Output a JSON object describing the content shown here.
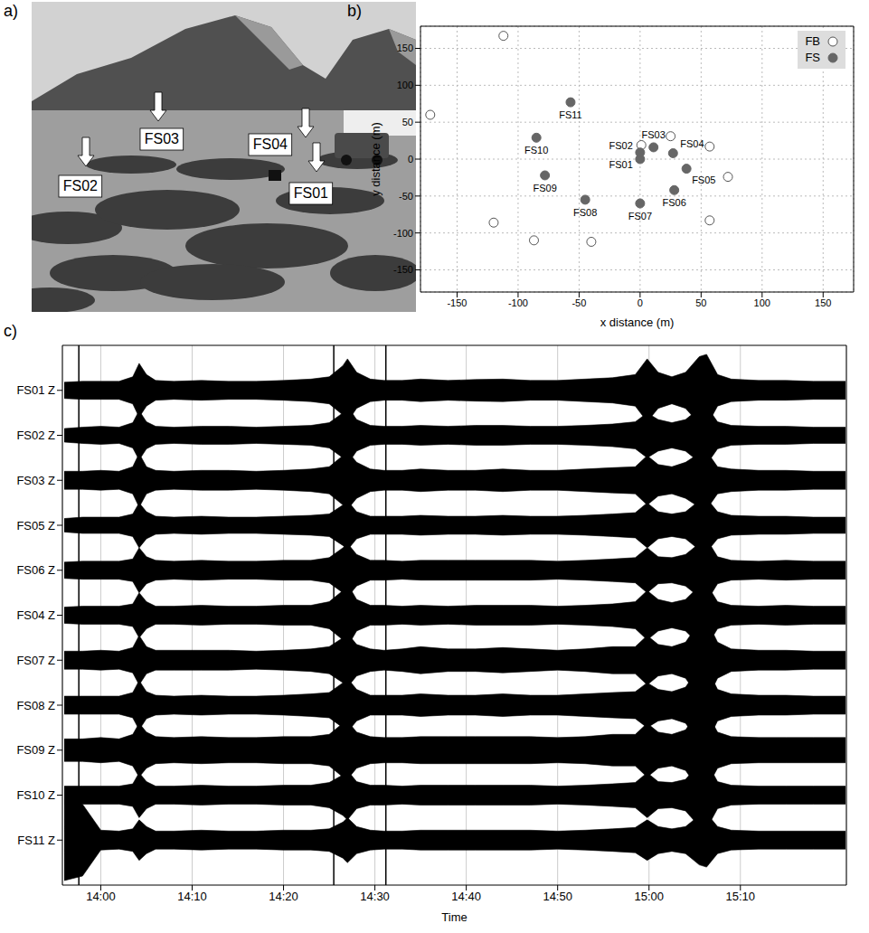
{
  "photo": {
    "panel_label": "a)",
    "labels": [
      "FS02",
      "FS03",
      "FS04",
      "FS01"
    ]
  },
  "chart_data": [
    {
      "type": "scatter",
      "panel_label": "b)",
      "xlabel": "x distance (m)",
      "ylabel": "y distance (m)",
      "xlim": [
        -180,
        175
      ],
      "ylim": [
        -180,
        180
      ],
      "xticks": [
        -150,
        -100,
        -50,
        0,
        50,
        100,
        150
      ],
      "yticks": [
        -150,
        -100,
        -50,
        0,
        50,
        100,
        150
      ],
      "grid": true,
      "legend": "upper right",
      "series": [
        {
          "name": "FB",
          "marker": "open_circle",
          "color": "#555555",
          "x": [
            -112,
            -172,
            -120,
            -87,
            -40,
            57,
            72,
            57,
            25,
            1
          ],
          "y": [
            167,
            60,
            -86,
            -110,
            -112,
            -83,
            -24,
            17,
            31,
            19
          ]
        },
        {
          "name": "FS",
          "marker": "circle",
          "color": "#666666",
          "x": [
            0,
            0,
            11,
            27,
            38,
            28,
            0,
            -45,
            -78,
            -85,
            -57
          ],
          "y": [
            0,
            9,
            16,
            8,
            -13,
            -42,
            -60,
            -55,
            -22,
            29,
            77
          ],
          "labels": [
            "FS01",
            "FS02",
            "FS03",
            "FS04",
            "FS05",
            "FS06",
            "FS07",
            "FS08",
            "FS09",
            "FS10",
            "FS11"
          ]
        }
      ]
    },
    {
      "type": "area",
      "panel_label": "c)",
      "xlabel": "Time",
      "grid": true,
      "xlim": [
        835.8,
        921.6
      ],
      "xticks": [
        {
          "value": 840,
          "label": "14:00"
        },
        {
          "value": 850,
          "label": "14:10"
        },
        {
          "value": 860,
          "label": "14:20"
        },
        {
          "value": 870,
          "label": "14:30"
        },
        {
          "value": 880,
          "label": "14:40"
        },
        {
          "value": 890,
          "label": "14:50"
        },
        {
          "value": 900,
          "label": "15:00"
        },
        {
          "value": 910,
          "label": "15:10"
        }
      ],
      "time_marks": [
        837.6,
        865.5,
        871.2
      ],
      "x": [
        836,
        838,
        840,
        842,
        843.5,
        844.2,
        845,
        846,
        848,
        851,
        854,
        857,
        860,
        863,
        865,
        866.5,
        867,
        868,
        869.5,
        871,
        873,
        875,
        878,
        881,
        884,
        887,
        890,
        893,
        896,
        898.5,
        899.8,
        901,
        902.5,
        904,
        905.5,
        906.3,
        907.5,
        909,
        912,
        915,
        918,
        921.5
      ],
      "series": [
        {
          "name": "FS01 Z",
          "color": "#000000",
          "values": [
            0.18,
            0.2,
            0.2,
            0.2,
            0.3,
            0.6,
            0.35,
            0.22,
            0.2,
            0.22,
            0.2,
            0.2,
            0.22,
            0.25,
            0.3,
            0.55,
            0.7,
            0.4,
            0.25,
            0.22,
            0.22,
            0.25,
            0.22,
            0.24,
            0.25,
            0.22,
            0.22,
            0.25,
            0.28,
            0.35,
            0.7,
            0.4,
            0.3,
            0.4,
            0.75,
            0.8,
            0.35,
            0.25,
            0.22,
            0.22,
            0.2,
            0.2
          ]
        },
        {
          "name": "FS02 Z",
          "color": "#000000",
          "values": [
            0.15,
            0.18,
            0.2,
            0.18,
            0.28,
            0.55,
            0.3,
            0.2,
            0.18,
            0.2,
            0.2,
            0.18,
            0.2,
            0.22,
            0.28,
            0.5,
            0.65,
            0.35,
            0.22,
            0.2,
            0.2,
            0.22,
            0.2,
            0.22,
            0.22,
            0.2,
            0.2,
            0.22,
            0.25,
            0.3,
            0.5,
            0.35,
            0.28,
            0.35,
            0.6,
            0.65,
            0.3,
            0.22,
            0.2,
            0.2,
            0.18,
            0.18
          ]
        },
        {
          "name": "FS03 Z",
          "color": "#000000",
          "values": [
            0.2,
            0.2,
            0.22,
            0.2,
            0.3,
            0.6,
            0.3,
            0.22,
            0.2,
            0.22,
            0.22,
            0.2,
            0.22,
            0.25,
            0.3,
            0.55,
            0.65,
            0.4,
            0.25,
            0.22,
            0.22,
            0.25,
            0.22,
            0.22,
            0.25,
            0.22,
            0.22,
            0.25,
            0.28,
            0.3,
            0.55,
            0.35,
            0.3,
            0.4,
            0.6,
            0.65,
            0.3,
            0.25,
            0.22,
            0.22,
            0.2,
            0.2
          ]
        },
        {
          "name": "FS05 Z",
          "color": "#000000",
          "values": [
            0.15,
            0.18,
            0.18,
            0.18,
            0.25,
            0.5,
            0.3,
            0.2,
            0.18,
            0.2,
            0.18,
            0.18,
            0.2,
            0.22,
            0.25,
            0.45,
            0.55,
            0.3,
            0.2,
            0.2,
            0.2,
            0.22,
            0.2,
            0.2,
            0.22,
            0.2,
            0.2,
            0.22,
            0.25,
            0.28,
            0.5,
            0.3,
            0.25,
            0.3,
            0.55,
            0.6,
            0.3,
            0.22,
            0.2,
            0.2,
            0.18,
            0.18
          ]
        },
        {
          "name": "FS06 Z",
          "color": "#000000",
          "values": [
            0.18,
            0.2,
            0.2,
            0.2,
            0.25,
            0.5,
            0.3,
            0.22,
            0.2,
            0.22,
            0.2,
            0.2,
            0.22,
            0.22,
            0.28,
            0.5,
            0.6,
            0.35,
            0.22,
            0.22,
            0.2,
            0.22,
            0.22,
            0.22,
            0.22,
            0.22,
            0.2,
            0.22,
            0.25,
            0.28,
            0.5,
            0.3,
            0.28,
            0.35,
            0.6,
            0.7,
            0.3,
            0.22,
            0.2,
            0.22,
            0.2,
            0.2
          ]
        },
        {
          "name": "FS04 Z",
          "color": "#000000",
          "values": [
            0.18,
            0.2,
            0.2,
            0.2,
            0.25,
            0.5,
            0.3,
            0.2,
            0.2,
            0.22,
            0.2,
            0.2,
            0.22,
            0.22,
            0.3,
            0.55,
            0.7,
            0.35,
            0.22,
            0.22,
            0.2,
            0.22,
            0.2,
            0.22,
            0.22,
            0.22,
            0.2,
            0.22,
            0.25,
            0.3,
            0.55,
            0.35,
            0.28,
            0.35,
            0.65,
            0.7,
            0.3,
            0.22,
            0.2,
            0.22,
            0.2,
            0.2
          ]
        },
        {
          "name": "FS07 Z",
          "color": "#000000",
          "values": [
            0.2,
            0.2,
            0.22,
            0.2,
            0.28,
            0.55,
            0.3,
            0.22,
            0.22,
            0.22,
            0.22,
            0.2,
            0.22,
            0.25,
            0.3,
            0.5,
            0.6,
            0.35,
            0.25,
            0.22,
            0.25,
            0.3,
            0.25,
            0.25,
            0.28,
            0.25,
            0.22,
            0.25,
            0.3,
            0.3,
            0.55,
            0.35,
            0.3,
            0.4,
            0.85,
            0.9,
            0.4,
            0.25,
            0.22,
            0.22,
            0.2,
            0.2
          ]
        },
        {
          "name": "FS08 Z",
          "color": "#000000",
          "values": [
            0.2,
            0.2,
            0.2,
            0.2,
            0.28,
            0.55,
            0.3,
            0.22,
            0.2,
            0.22,
            0.2,
            0.2,
            0.22,
            0.25,
            0.28,
            0.5,
            0.6,
            0.35,
            0.22,
            0.22,
            0.22,
            0.25,
            0.22,
            0.22,
            0.25,
            0.22,
            0.22,
            0.25,
            0.28,
            0.3,
            0.5,
            0.35,
            0.3,
            0.4,
            0.85,
            0.85,
            0.35,
            0.25,
            0.22,
            0.22,
            0.2,
            0.2
          ]
        },
        {
          "name": "FS09 Z",
          "color": "#000000",
          "values": [
            0.25,
            0.25,
            0.28,
            0.25,
            0.35,
            0.6,
            0.4,
            0.3,
            0.28,
            0.3,
            0.28,
            0.28,
            0.3,
            0.3,
            0.35,
            0.6,
            0.65,
            0.4,
            0.3,
            0.28,
            0.28,
            0.3,
            0.3,
            0.3,
            0.3,
            0.3,
            0.28,
            0.3,
            0.35,
            0.35,
            0.6,
            0.4,
            0.35,
            0.45,
            0.9,
            0.85,
            0.4,
            0.3,
            0.28,
            0.28,
            0.28,
            0.28
          ]
        },
        {
          "name": "FS10 Z",
          "color": "#000000",
          "values": [
            0.2,
            0.2,
            0.2,
            0.2,
            0.25,
            0.5,
            0.3,
            0.2,
            0.2,
            0.22,
            0.2,
            0.2,
            0.22,
            0.22,
            0.28,
            0.45,
            0.55,
            0.3,
            0.22,
            0.22,
            0.2,
            0.22,
            0.22,
            0.22,
            0.22,
            0.22,
            0.2,
            0.22,
            0.25,
            0.28,
            0.5,
            0.3,
            0.28,
            0.35,
            0.7,
            0.75,
            0.3,
            0.22,
            0.2,
            0.2,
            0.2,
            0.2
          ]
        },
        {
          "name": "FS11 Z",
          "color": "#000000",
          "values": [
            0.9,
            0.8,
            0.22,
            0.2,
            0.25,
            0.45,
            0.3,
            0.2,
            0.2,
            0.22,
            0.2,
            0.2,
            0.22,
            0.22,
            0.25,
            0.4,
            0.5,
            0.3,
            0.22,
            0.2,
            0.2,
            0.22,
            0.22,
            0.22,
            0.22,
            0.22,
            0.2,
            0.22,
            0.25,
            0.28,
            0.45,
            0.3,
            0.25,
            0.3,
            0.55,
            0.6,
            0.3,
            0.22,
            0.2,
            0.2,
            0.2,
            0.2
          ]
        }
      ]
    }
  ]
}
